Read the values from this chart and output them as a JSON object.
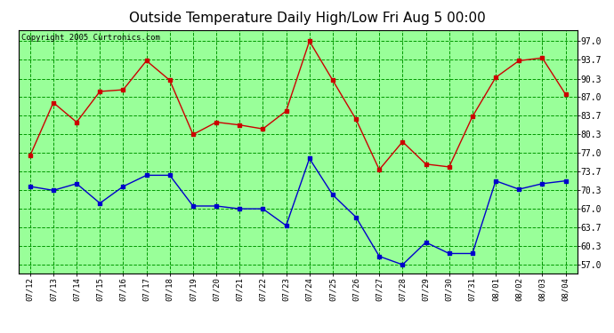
{
  "title": "Outside Temperature Daily High/Low Fri Aug 5 00:00",
  "copyright": "Copyright 2005 Curtronics.com",
  "x_labels": [
    "07/12",
    "07/13",
    "07/14",
    "07/15",
    "07/16",
    "07/17",
    "07/18",
    "07/19",
    "07/20",
    "07/21",
    "07/22",
    "07/23",
    "07/24",
    "07/25",
    "07/26",
    "07/27",
    "07/28",
    "07/29",
    "07/30",
    "07/31",
    "08/01",
    "08/02",
    "08/03",
    "08/04"
  ],
  "high_temps": [
    76.5,
    86.0,
    82.5,
    88.0,
    88.3,
    93.5,
    90.0,
    80.3,
    82.5,
    82.0,
    81.3,
    84.5,
    97.0,
    90.0,
    83.0,
    74.0,
    79.0,
    75.0,
    74.5,
    83.5,
    90.5,
    93.5,
    94.0,
    87.5
  ],
  "low_temps": [
    71.0,
    70.3,
    71.5,
    68.0,
    71.0,
    73.0,
    73.0,
    67.5,
    67.5,
    67.0,
    67.0,
    64.0,
    76.0,
    69.5,
    65.5,
    58.5,
    57.0,
    61.0,
    59.0,
    59.0,
    72.0,
    70.5,
    71.5,
    72.0
  ],
  "high_color": "#cc0000",
  "low_color": "#0000cc",
  "bg_color": "#ffffff",
  "plot_bg_color": "#99ff99",
  "grid_major_color": "#009900",
  "grid_minor_color": "#00cc00",
  "border_color": "#000000",
  "title_fontsize": 11,
  "copyright_fontsize": 6.5,
  "yticks": [
    57.0,
    60.3,
    63.7,
    67.0,
    70.3,
    73.7,
    77.0,
    80.3,
    83.7,
    87.0,
    90.3,
    93.7,
    97.0
  ],
  "ylim": [
    55.5,
    99.0
  ],
  "marker": "s",
  "marker_size": 2.5,
  "line_width": 1.0
}
